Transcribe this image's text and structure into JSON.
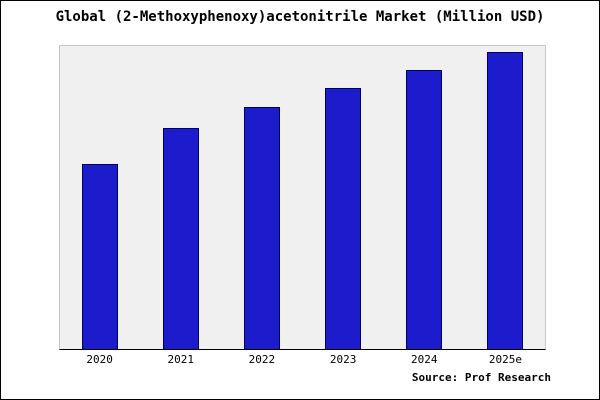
{
  "source_label": "Source: Prof Research",
  "chart_data": {
    "type": "bar",
    "title": "Global (2-Methoxyphenoxy)acetonitrile Market (Million USD)",
    "categories": [
      "2020",
      "2021",
      "2022",
      "2023",
      "2024",
      "2025e"
    ],
    "values": [
      61,
      73,
      80,
      86,
      92,
      98
    ],
    "xlabel": "",
    "ylabel": "",
    "ylim": [
      0,
      100
    ],
    "grid": false,
    "legend": "none",
    "bar_color": "#1c1ccd",
    "bar_border_color": "#000060",
    "plot_background": "#f0f0f0"
  }
}
